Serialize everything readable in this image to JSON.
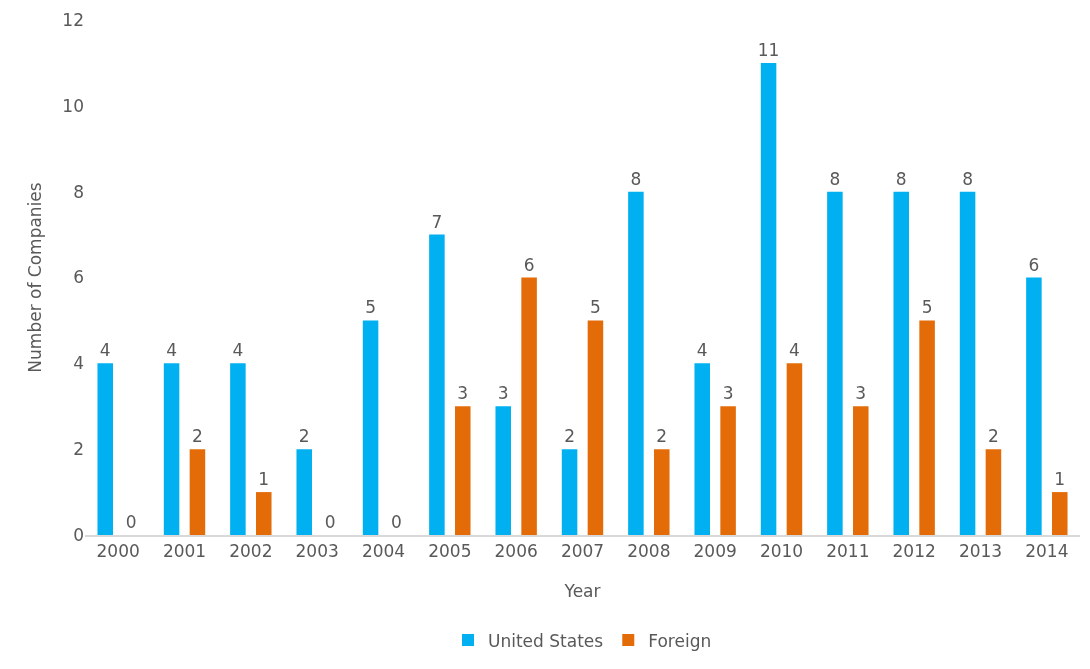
{
  "chart_data": {
    "type": "bar",
    "xlabel": "Year",
    "ylabel": "Number of Companies",
    "categories": [
      "2000",
      "2001",
      "2002",
      "2003",
      "2004",
      "2005",
      "2006",
      "2007",
      "2008",
      "2009",
      "2010",
      "2011",
      "2012",
      "2013",
      "2014"
    ],
    "series": [
      {
        "name": "United States",
        "color": "#00b0f0",
        "values": [
          4,
          4,
          4,
          2,
          5,
          7,
          3,
          2,
          8,
          4,
          11,
          8,
          8,
          8,
          6
        ]
      },
      {
        "name": "Foreign",
        "color": "#e36c09",
        "values": [
          0,
          2,
          1,
          0,
          0,
          3,
          6,
          5,
          2,
          3,
          4,
          3,
          5,
          2,
          1
        ]
      }
    ],
    "ylim": [
      0,
      12
    ],
    "yticks": [
      0,
      2,
      4,
      6,
      8,
      10,
      12
    ],
    "grid": false,
    "legend": "bottom",
    "data_labels": true
  }
}
